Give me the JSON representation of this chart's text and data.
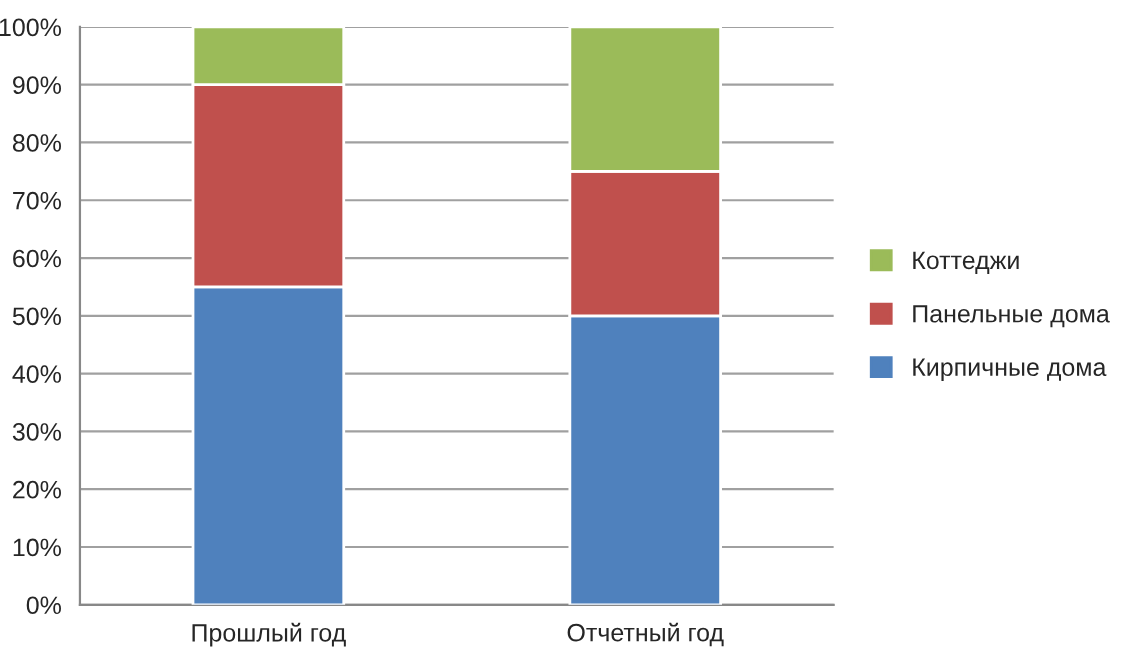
{
  "chart_data": {
    "type": "bar",
    "stacked": true,
    "categories": [
      "Прошлый год",
      "Отчетный год"
    ],
    "series": [
      {
        "name": "Кирпичные дома",
        "color": "#4f81bd",
        "values": [
          55,
          50
        ]
      },
      {
        "name": "Панельные дома",
        "color": "#c0504d",
        "values": [
          35,
          25
        ]
      },
      {
        "name": "Коттеджи",
        "color": "#9bbb59",
        "values": [
          10,
          25
        ]
      }
    ],
    "ylim": [
      0,
      100
    ],
    "yticks": [
      {
        "value": 0,
        "label": "0%"
      },
      {
        "value": 10,
        "label": "10%"
      },
      {
        "value": 20,
        "label": "20%"
      },
      {
        "value": 30,
        "label": "30%"
      },
      {
        "value": 40,
        "label": "40%"
      },
      {
        "value": 50,
        "label": "50%"
      },
      {
        "value": 60,
        "label": "60%"
      },
      {
        "value": 70,
        "label": "70%"
      },
      {
        "value": 80,
        "label": "80%"
      },
      {
        "value": 90,
        "label": "90%"
      },
      {
        "value": 100,
        "label": "100%"
      }
    ],
    "grid": "y",
    "legend": "right"
  }
}
